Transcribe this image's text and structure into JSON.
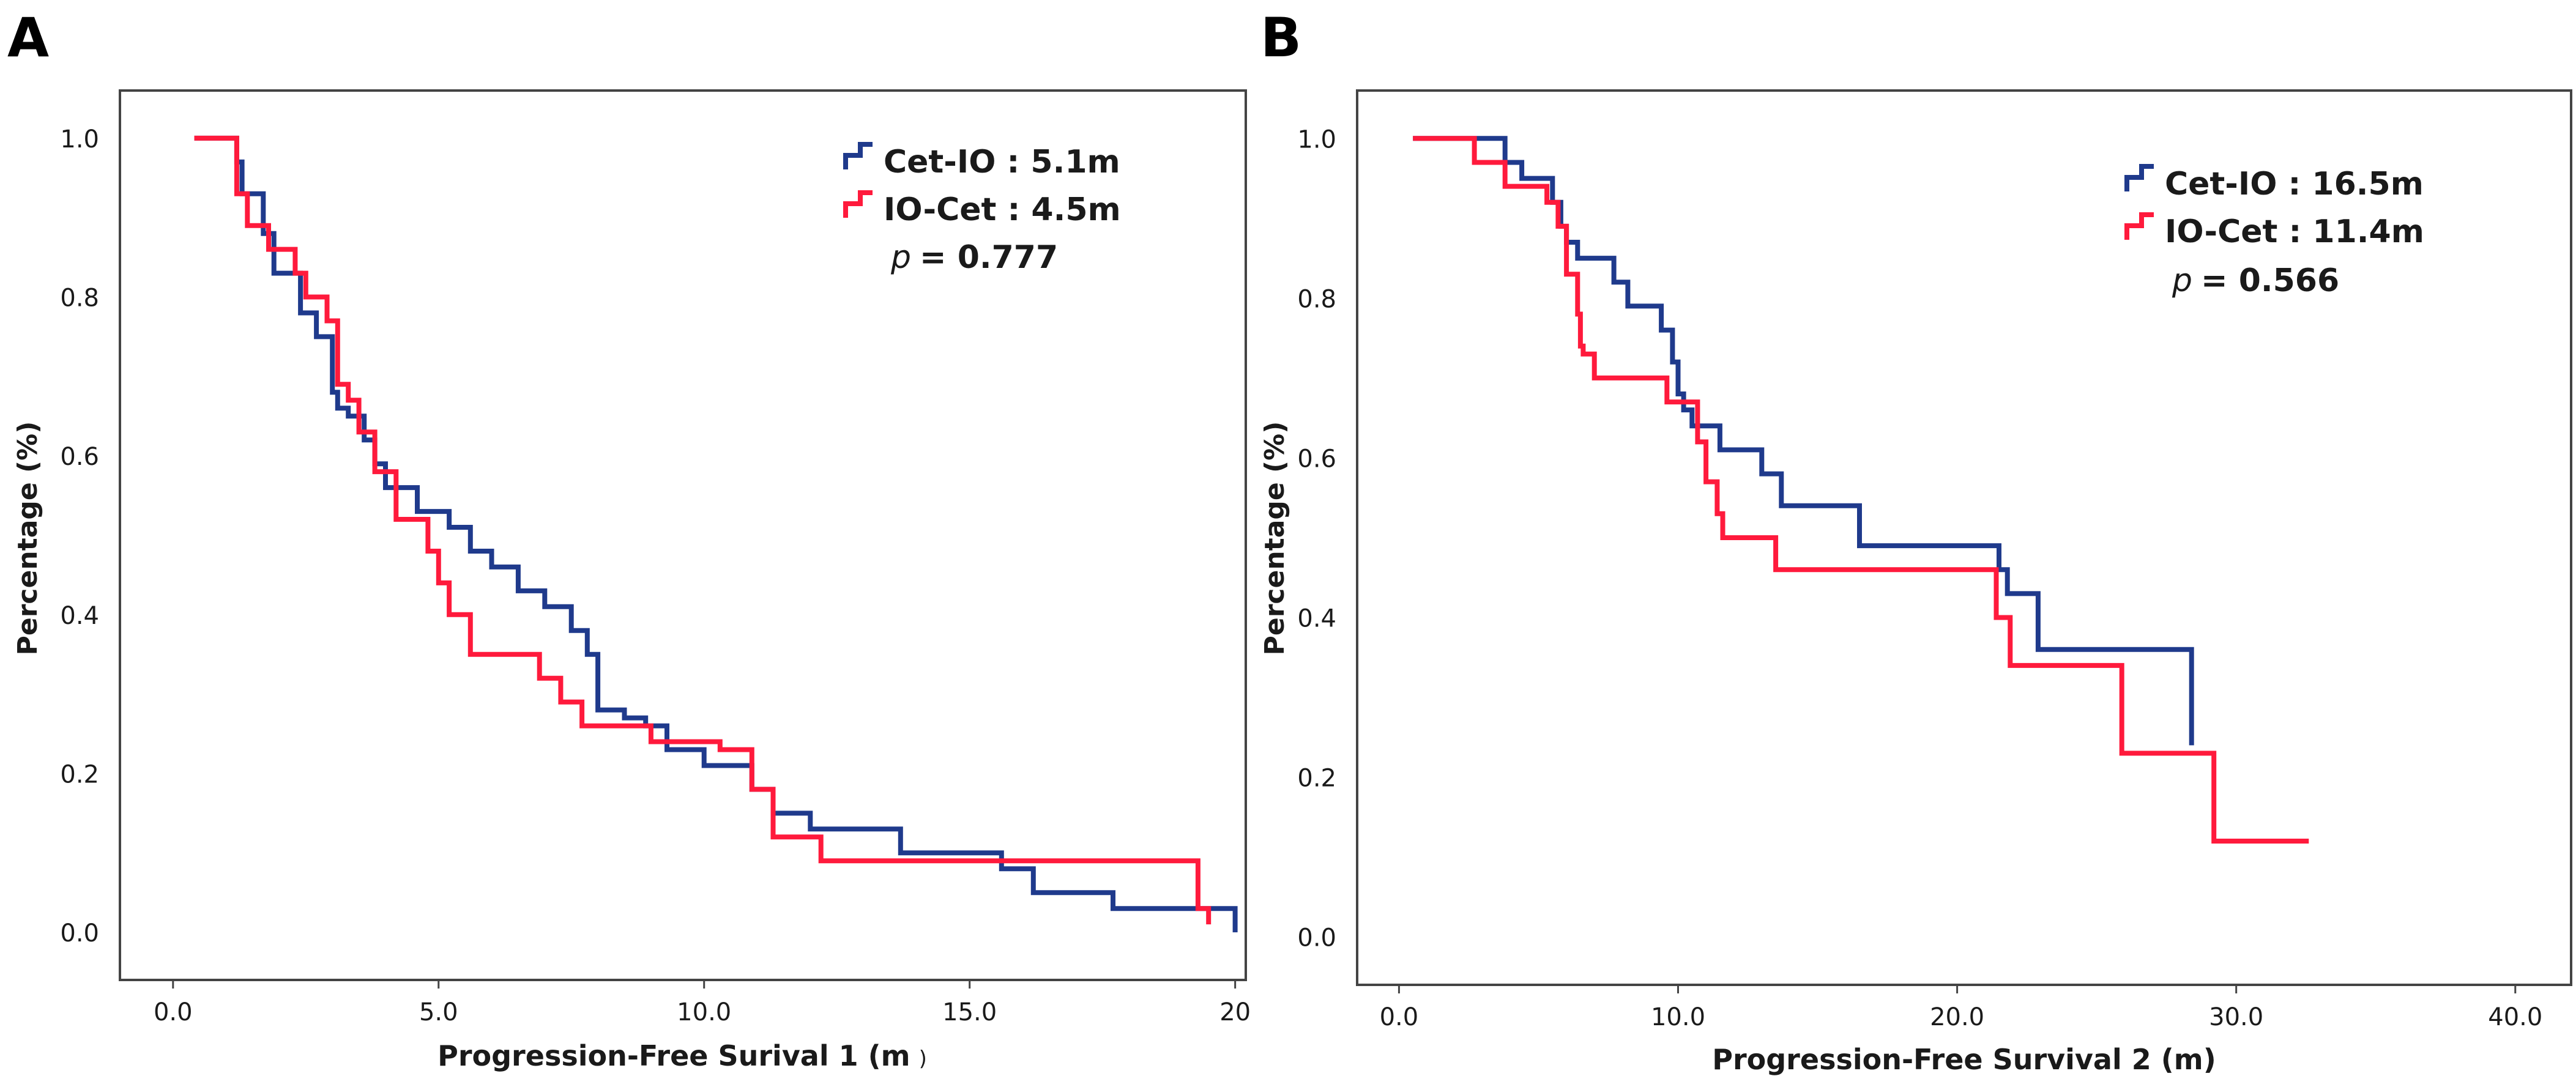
{
  "figure": {
    "panels": [
      {
        "letter": "A",
        "xlabel_main": "Progression-Free Surival 1 (m",
        "xlabel_close": ")",
        "legend_p_letter": "p",
        "legend_p_value": "= 0.777"
      },
      {
        "letter": "B",
        "xlabel_main": "Progression-Free Survival 2 (m)",
        "xlabel_close": "",
        "legend_p_letter": "p",
        "legend_p_value": "= 0.566"
      }
    ]
  },
  "colors": {
    "cet_io": "#1f3a8c",
    "io_cet": "#ff1a3c",
    "axis": "#444444",
    "text": "#1a1a1a"
  },
  "chart_data": [
    {
      "type": "line",
      "title": "A",
      "xlabel": "Progression-Free Surival 1 (m )",
      "ylabel": "Percentage (%)",
      "xlim": [
        -1,
        20.2
      ],
      "ylim": [
        -0.06,
        1.06
      ],
      "xticks": [
        0.0,
        5.0,
        10.0,
        15.0,
        20.0
      ],
      "xtick_labels": [
        "0.0",
        "5.0",
        "10.0",
        "15.0",
        "20"
      ],
      "yticks": [
        0.0,
        0.2,
        0.4,
        0.6,
        0.8,
        1.0
      ],
      "ytick_labels": [
        "0.0",
        "0.2",
        "0.4",
        "0.6",
        "0.8",
        "1.0"
      ],
      "grid": false,
      "legend": "top-right",
      "series": [
        {
          "name": "Cet-IO : 5.1m",
          "color": "#1f3a8c",
          "x": [
            0.4,
            1.2,
            1.3,
            1.7,
            1.9,
            2.4,
            2.7,
            3.0,
            3.1,
            3.3,
            3.6,
            3.8,
            4.0,
            4.6,
            5.2,
            5.6,
            6.0,
            6.5,
            7.0,
            7.5,
            7.8,
            8.0,
            8.5,
            8.9,
            9.3,
            10.0,
            10.9,
            11.3,
            12.0,
            13.7,
            14.5,
            15.6,
            16.2,
            17.7,
            19.5,
            20.0
          ],
          "y": [
            1.0,
            0.97,
            0.93,
            0.88,
            0.83,
            0.78,
            0.75,
            0.68,
            0.66,
            0.65,
            0.62,
            0.59,
            0.56,
            0.53,
            0.51,
            0.48,
            0.46,
            0.43,
            0.41,
            0.38,
            0.35,
            0.28,
            0.27,
            0.26,
            0.23,
            0.21,
            0.18,
            0.15,
            0.13,
            0.1,
            0.1,
            0.08,
            0.05,
            0.03,
            0.03,
            0.0
          ]
        },
        {
          "name": "IO-Cet : 4.5m",
          "color": "#ff1a3c",
          "x": [
            0.4,
            1.2,
            1.4,
            1.8,
            2.3,
            2.5,
            2.9,
            3.1,
            3.3,
            3.5,
            3.8,
            4.2,
            4.6,
            4.8,
            5.0,
            5.2,
            5.6,
            6.3,
            6.9,
            7.3,
            7.7,
            8.5,
            9.0,
            10.3,
            10.9,
            11.3,
            12.2,
            15.5,
            18.8,
            19.3,
            19.5
          ],
          "y": [
            1.0,
            0.93,
            0.89,
            0.86,
            0.83,
            0.8,
            0.77,
            0.69,
            0.67,
            0.63,
            0.58,
            0.52,
            0.52,
            0.48,
            0.44,
            0.4,
            0.35,
            0.35,
            0.32,
            0.29,
            0.26,
            0.26,
            0.24,
            0.23,
            0.18,
            0.12,
            0.09,
            0.09,
            0.09,
            0.03,
            0.01
          ]
        }
      ]
    },
    {
      "type": "line",
      "title": "B",
      "xlabel": "Progression-Free Survival 2 (m)",
      "ylabel": "Percentage (%)",
      "xlim": [
        -1.5,
        42
      ],
      "ylim": [
        -0.06,
        1.06
      ],
      "xticks": [
        0.0,
        10.0,
        20.0,
        30.0,
        40.0
      ],
      "xtick_labels": [
        "0.0",
        "10.0",
        "20.0",
        "30.0",
        "40.0"
      ],
      "yticks": [
        0.0,
        0.2,
        0.4,
        0.6,
        0.8,
        1.0
      ],
      "ytick_labels": [
        "0.0",
        "0.2",
        "0.4",
        "0.6",
        "0.8",
        "1.0"
      ],
      "grid": false,
      "legend": "top-right",
      "series": [
        {
          "name": "Cet-IO : 16.5m",
          "color": "#1f3a8c",
          "x": [
            0.5,
            3.8,
            4.4,
            5.5,
            5.8,
            6.0,
            6.4,
            7.7,
            8.2,
            9.4,
            9.8,
            10.0,
            10.2,
            10.5,
            11.0,
            11.5,
            13.0,
            13.7,
            16.5,
            21.5,
            21.8,
            22.9,
            28.0,
            28.4
          ],
          "y": [
            1.0,
            0.97,
            0.95,
            0.92,
            0.89,
            0.87,
            0.85,
            0.82,
            0.79,
            0.76,
            0.72,
            0.68,
            0.66,
            0.64,
            0.64,
            0.61,
            0.58,
            0.54,
            0.49,
            0.46,
            0.43,
            0.36,
            0.36,
            0.24
          ]
        },
        {
          "name": "IO-Cet : 11.4m",
          "color": "#ff1a3c",
          "x": [
            0.5,
            2.7,
            3.8,
            4.5,
            5.3,
            5.7,
            6.0,
            6.4,
            6.5,
            6.6,
            7.0,
            7.4,
            9.6,
            10.7,
            11.0,
            11.4,
            11.6,
            13.5,
            21.4,
            21.9,
            25.9,
            29.2,
            32.6
          ],
          "y": [
            1.0,
            0.97,
            0.94,
            0.94,
            0.92,
            0.89,
            0.83,
            0.78,
            0.74,
            0.73,
            0.7,
            0.7,
            0.67,
            0.62,
            0.57,
            0.53,
            0.5,
            0.46,
            0.4,
            0.34,
            0.23,
            0.12,
            0.12
          ]
        }
      ]
    }
  ]
}
